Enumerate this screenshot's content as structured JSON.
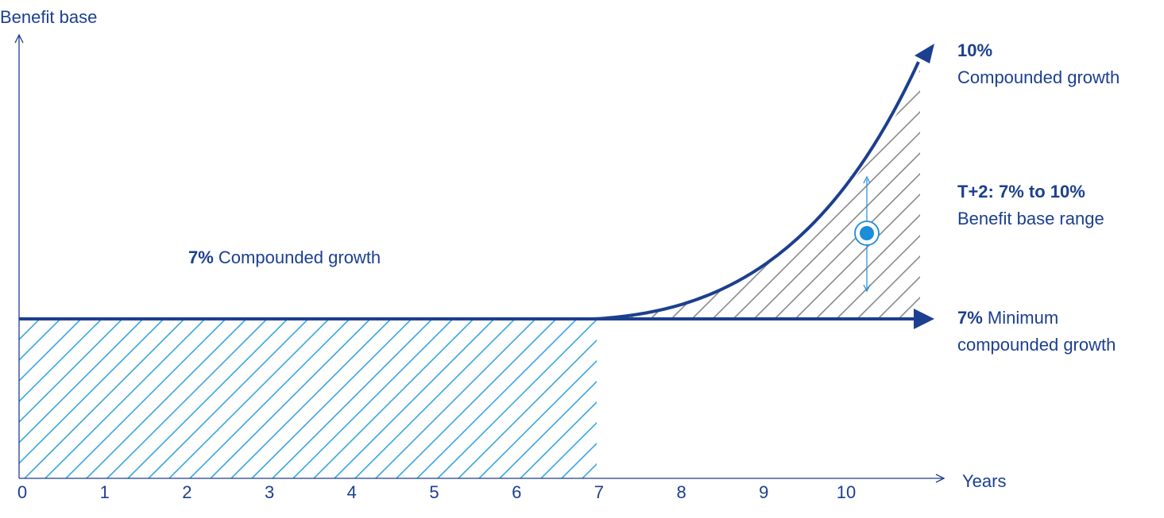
{
  "axes": {
    "y_label": "Benefit base",
    "x_label": "Years",
    "x_ticks": [
      "0",
      "1",
      "2",
      "3",
      "4",
      "5",
      "6",
      "7",
      "8",
      "9",
      "10"
    ]
  },
  "labels": {
    "compounded_7": {
      "bold": "7%",
      "text": "Compounded growth"
    },
    "top_curve": {
      "bold": "10%",
      "text": "Compounded growth"
    },
    "range": {
      "bold": "T+2: 7% to 10%",
      "text": "Benefit base range"
    },
    "minimum": {
      "bold": "7%",
      "line1": "Minimum",
      "line2": "compounded growth"
    }
  },
  "colors": {
    "navy": "#1c3f8f",
    "light_blue": "#3aa6e0",
    "gray_hatch": "#8a8a8a",
    "marker_blue": "#1a8ed8"
  }
}
